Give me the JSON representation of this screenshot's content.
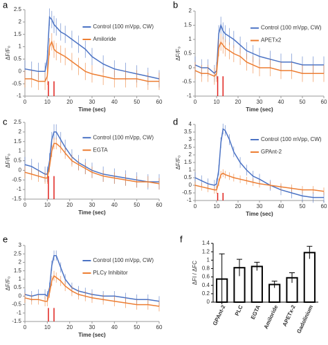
{
  "chart_data": [
    {
      "type": "line",
      "panel": "a",
      "xlabel": "Time (sec)",
      "ylabel": "ΔF/F₀",
      "xlim": [
        0,
        60
      ],
      "xticks": [
        0,
        10,
        20,
        30,
        40,
        50,
        60
      ],
      "ylim": [
        -1,
        2.5
      ],
      "yticks": [
        -1,
        -0.5,
        0,
        0.5,
        1,
        1.5,
        2,
        2.5
      ],
      "x": [
        0,
        3,
        6,
        9,
        10,
        11,
        12,
        13,
        14,
        16,
        18,
        21,
        24,
        27,
        30,
        35,
        40,
        45,
        50,
        55,
        60
      ],
      "stim_lines": [
        10.5,
        13
      ],
      "stim_top": -0.4,
      "stim_color": "#e0201b",
      "series": [
        {
          "name": "Control (100 mVpp, CW)",
          "color": "#4a72c4",
          "error": 0.35,
          "values": [
            0.1,
            0.05,
            0.0,
            0.0,
            0.5,
            2.2,
            2.1,
            1.9,
            1.8,
            1.6,
            1.5,
            1.3,
            1.1,
            0.9,
            0.6,
            0.3,
            0.1,
            0.0,
            -0.1,
            -0.2,
            -0.3
          ]
        },
        {
          "name": "Amiloride",
          "color": "#ed7d31",
          "error": 0.35,
          "values": [
            -0.3,
            -0.3,
            -0.4,
            -0.4,
            -0.2,
            1.0,
            1.2,
            0.9,
            0.8,
            0.7,
            0.6,
            0.4,
            0.2,
            0.0,
            -0.1,
            -0.2,
            -0.3,
            -0.3,
            -0.3,
            -0.4,
            -0.4
          ]
        }
      ]
    },
    {
      "type": "line",
      "panel": "b",
      "xlabel": "Time (sec)",
      "ylabel": "ΔF/F₀",
      "xlim": [
        0,
        60
      ],
      "xticks": [
        0,
        10,
        20,
        30,
        40,
        50,
        60
      ],
      "ylim": [
        -1,
        2
      ],
      "yticks": [
        -1,
        -0.5,
        0,
        0.5,
        1,
        1.5,
        2
      ],
      "x": [
        0,
        3,
        6,
        9,
        10,
        11,
        12,
        13,
        14,
        16,
        18,
        21,
        24,
        27,
        30,
        35,
        40,
        45,
        50,
        55,
        60
      ],
      "stim_lines": [
        10.5,
        13
      ],
      "stim_top": -0.3,
      "stim_color": "#e0201b",
      "series": [
        {
          "name": "Control (100 mVpp, CW)",
          "color": "#4a72c4",
          "error": 0.3,
          "values": [
            0.1,
            0.0,
            0.0,
            -0.2,
            -0.1,
            1.2,
            1.5,
            1.3,
            1.2,
            1.1,
            1.0,
            0.8,
            0.6,
            0.5,
            0.4,
            0.3,
            0.2,
            0.2,
            0.1,
            0.1,
            0.1
          ]
        },
        {
          "name": "APETx2",
          "color": "#ed7d31",
          "error": 0.3,
          "values": [
            -0.1,
            -0.2,
            -0.2,
            -0.3,
            -0.2,
            0.7,
            0.9,
            0.8,
            0.7,
            0.6,
            0.5,
            0.4,
            0.2,
            0.1,
            0.0,
            0.0,
            -0.1,
            -0.1,
            -0.2,
            -0.2,
            -0.2
          ]
        }
      ]
    },
    {
      "type": "line",
      "panel": "c",
      "xlabel": "Time (sec)",
      "ylabel": "ΔF/F₀",
      "xlim": [
        0,
        60
      ],
      "xticks": [
        0,
        10,
        20,
        30,
        40,
        50,
        60
      ],
      "ylim": [
        -1.5,
        2.5
      ],
      "yticks": [
        -1.5,
        -1,
        -0.5,
        0,
        0.5,
        1,
        1.5,
        2,
        2.5
      ],
      "x": [
        0,
        3,
        6,
        9,
        10,
        11,
        12,
        13,
        14,
        16,
        18,
        21,
        24,
        27,
        30,
        35,
        40,
        45,
        50,
        55,
        60
      ],
      "stim_lines": [
        10.5,
        13
      ],
      "stim_top": -0.3,
      "stim_color": "#e0201b",
      "series": [
        {
          "name": "Control (100 mVpp, CW)",
          "color": "#4a72c4",
          "error": 0.4,
          "values": [
            0.3,
            0.2,
            0.0,
            -0.2,
            -0.2,
            0.5,
            1.6,
            2.0,
            2.0,
            1.6,
            1.2,
            0.7,
            0.4,
            0.2,
            0.0,
            -0.2,
            -0.3,
            -0.4,
            -0.5,
            -0.6,
            -0.6
          ]
        },
        {
          "name": "EGTA",
          "color": "#ed7d31",
          "error": 0.3,
          "values": [
            -0.1,
            -0.2,
            -0.3,
            -0.4,
            -0.4,
            0.2,
            1.0,
            1.4,
            1.4,
            1.2,
            0.9,
            0.5,
            0.3,
            0.1,
            -0.1,
            -0.3,
            -0.4,
            -0.5,
            -0.6,
            -0.6,
            -0.7
          ]
        }
      ]
    },
    {
      "type": "line",
      "panel": "d",
      "xlabel": "Time (sec)",
      "ylabel": "ΔF/F₀",
      "xlim": [
        0,
        60
      ],
      "xticks": [
        0,
        10,
        20,
        30,
        40,
        50,
        60
      ],
      "ylim": [
        -1,
        4
      ],
      "yticks": [
        -1,
        -0.5,
        0,
        0.5,
        1,
        1.5,
        2,
        2.5,
        3,
        3.5,
        4
      ],
      "x": [
        0,
        3,
        6,
        9,
        10,
        11,
        12,
        13,
        14,
        16,
        18,
        21,
        24,
        27,
        30,
        35,
        40,
        45,
        50,
        55,
        60
      ],
      "stim_lines": [
        10.5,
        13
      ],
      "stim_top": -0.5,
      "stim_color": "#e0201b",
      "series": [
        {
          "name": "Control (100 mVpp, CW)",
          "color": "#4a72c4",
          "error": 0.35,
          "values": [
            0.5,
            0.3,
            0.1,
            0.0,
            0.1,
            1.0,
            2.8,
            3.7,
            3.6,
            3.0,
            2.2,
            1.5,
            1.0,
            0.6,
            0.4,
            0.0,
            -0.3,
            -0.5,
            -0.7,
            -0.8,
            -0.8
          ]
        },
        {
          "name": "GPAnt-2",
          "color": "#ed7d31",
          "error": 0.25,
          "values": [
            0.0,
            -0.1,
            -0.2,
            -0.3,
            -0.3,
            0.2,
            0.7,
            0.8,
            0.7,
            0.6,
            0.5,
            0.4,
            0.3,
            0.2,
            0.1,
            0.0,
            -0.1,
            -0.2,
            -0.3,
            -0.3,
            -0.4
          ]
        }
      ]
    },
    {
      "type": "line",
      "panel": "e",
      "xlabel": "Time (sec)",
      "ylabel": "ΔF/F₀",
      "xlim": [
        0,
        60
      ],
      "xticks": [
        0,
        10,
        20,
        30,
        40,
        50,
        60
      ],
      "ylim": [
        -1.5,
        3
      ],
      "yticks": [
        -1.5,
        -1,
        -0.5,
        0,
        0.5,
        1,
        1.5,
        2,
        2.5,
        3
      ],
      "x": [
        0,
        3,
        6,
        9,
        10,
        11,
        12,
        13,
        14,
        16,
        18,
        21,
        24,
        27,
        30,
        35,
        40,
        45,
        50,
        55,
        60
      ],
      "stim_lines": [
        10.5,
        13
      ],
      "stim_top": -0.7,
      "stim_color": "#e0201b",
      "series": [
        {
          "name": "Control (100 mVpp, CW)",
          "color": "#4a72c4",
          "error": 0.3,
          "values": [
            0.1,
            0.0,
            0.1,
            0.1,
            0.0,
            0.5,
            1.8,
            2.4,
            2.4,
            1.7,
            1.0,
            0.5,
            0.3,
            0.2,
            0.1,
            0.0,
            0.0,
            -0.1,
            -0.2,
            -0.2,
            -0.3
          ]
        },
        {
          "name": "PLCγ Inhibitor",
          "color": "#ed7d31",
          "error": 0.3,
          "values": [
            -0.1,
            -0.2,
            -0.2,
            -0.3,
            -0.3,
            0.2,
            0.9,
            1.2,
            1.1,
            0.9,
            0.6,
            0.3,
            0.1,
            0.0,
            -0.1,
            -0.2,
            -0.3,
            -0.4,
            -0.5,
            -0.5,
            -0.6
          ]
        }
      ]
    },
    {
      "type": "bar",
      "panel": "f",
      "ylabel": "ΔFI / ΔFC",
      "categories": [
        "GPAnt-2",
        "PLC",
        "EGTA",
        "Amiloride",
        "APETx-2",
        "Gadolinium"
      ],
      "values": [
        0.55,
        0.82,
        0.85,
        0.42,
        0.58,
        1.18
      ],
      "errors": [
        0.6,
        0.2,
        0.1,
        0.08,
        0.12,
        0.15
      ],
      "color": "#000000",
      "ylim": [
        0,
        1.4
      ],
      "yticks": [
        0,
        0.2,
        0.4,
        0.6,
        0.8,
        1,
        1.2,
        1.4
      ]
    }
  ]
}
